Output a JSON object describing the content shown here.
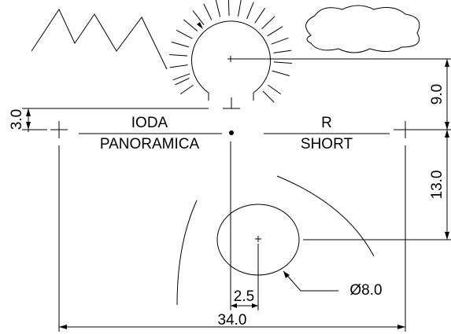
{
  "labels": {
    "left_top": "IODA",
    "left_bottom": "PANORAMICA",
    "right_top": "R",
    "right_bottom": "SHORT"
  },
  "dimensions": {
    "vertical_upper": "9.0",
    "vertical_lower": "13.0",
    "vertical_left": "3.0",
    "offset": "2.5",
    "diameter": "Ø8.0",
    "width": "34.0"
  }
}
